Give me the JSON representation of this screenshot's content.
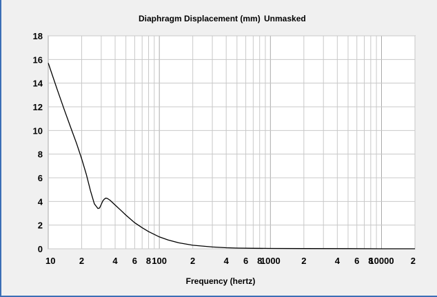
{
  "chart_data": {
    "type": "line",
    "title": "Diaphragm Displacement (mm)",
    "subtitle": "Unmasked",
    "xlabel": "Frequency (hertz)",
    "ylabel": "",
    "xscale": "log",
    "xlim": [
      10,
      20000
    ],
    "ylim": [
      0,
      18
    ],
    "yticks": [
      0,
      2,
      4,
      6,
      8,
      10,
      12,
      14,
      16,
      18
    ],
    "xticks": [
      {
        "value": 10,
        "label": "10"
      },
      {
        "value": 20,
        "label": "2"
      },
      {
        "value": 40,
        "label": "4"
      },
      {
        "value": 60,
        "label": "6"
      },
      {
        "value": 80,
        "label": "8"
      },
      {
        "value": 100,
        "label": "100"
      },
      {
        "value": 200,
        "label": "2"
      },
      {
        "value": 400,
        "label": "4"
      },
      {
        "value": 600,
        "label": "6"
      },
      {
        "value": 800,
        "label": "8"
      },
      {
        "value": 1000,
        "label": "1000"
      },
      {
        "value": 2000,
        "label": "2"
      },
      {
        "value": 4000,
        "label": "4"
      },
      {
        "value": 6000,
        "label": "6"
      },
      {
        "value": 8000,
        "label": "8"
      },
      {
        "value": 10000,
        "label": "10000"
      },
      {
        "value": 20000,
        "label": "2"
      }
    ],
    "grid": true,
    "colors": {
      "line": "#000000",
      "grid": "#c8c8c8",
      "plot_bg": "#ffffff",
      "page_bg": "#f0f0f0"
    },
    "series": [
      {
        "x": [
          10,
          12,
          14,
          16,
          18,
          20,
          22,
          24,
          26,
          28,
          29,
          30,
          31,
          32,
          33,
          34,
          36,
          38,
          40,
          45,
          50,
          60,
          70,
          80,
          100,
          120,
          150,
          200,
          300,
          400,
          500,
          700,
          1000,
          2000,
          5000,
          10000,
          20000
        ],
        "y": [
          15.7,
          13.5,
          11.7,
          10.2,
          8.9,
          7.6,
          6.3,
          4.9,
          3.8,
          3.4,
          3.45,
          3.75,
          4.05,
          4.2,
          4.28,
          4.25,
          4.1,
          3.9,
          3.7,
          3.25,
          2.85,
          2.2,
          1.78,
          1.45,
          1.0,
          0.74,
          0.5,
          0.3,
          0.15,
          0.09,
          0.06,
          0.04,
          0.03,
          0.02,
          0.01,
          0.0,
          0.0
        ]
      }
    ]
  }
}
